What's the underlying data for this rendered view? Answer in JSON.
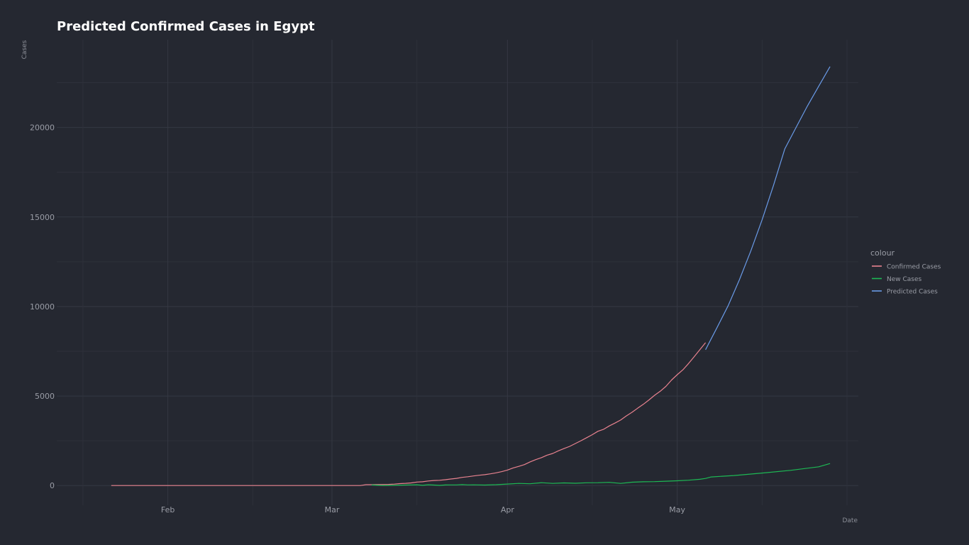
{
  "chart_data": {
    "type": "line",
    "title": "Predicted Confirmed Cases in Egypt",
    "xlabel": "Date",
    "ylabel": "Cases",
    "x_start": "2020-01-22",
    "x_end": "2020-05-26",
    "xlim_days": [
      -8,
      132
    ],
    "ylim": [
      -1100,
      24900
    ],
    "y_ticks": [
      0,
      5000,
      10000,
      15000,
      20000
    ],
    "y_tick_labels": [
      "0",
      "5000",
      "10000",
      "15000",
      "20000"
    ],
    "x_ticks_days": [
      10,
      39,
      70,
      100
    ],
    "x_tick_labels": [
      "Feb",
      "Mar",
      "Apr",
      "May"
    ],
    "x_minor_days": [
      -5,
      25,
      54,
      85,
      115,
      130
    ],
    "legend_title": "colour",
    "legend_position": "right",
    "grid": true,
    "series": [
      {
        "name": "Confirmed Cases",
        "color": "#e8828f",
        "x_days": [
          0,
          5,
          10,
          15,
          20,
          25,
          30,
          35,
          40,
          41,
          42,
          44,
          45,
          46,
          47,
          48,
          49,
          50,
          51,
          52,
          53,
          54,
          55,
          56,
          57,
          58,
          59,
          60,
          61,
          62,
          63,
          64,
          65,
          66,
          67,
          68,
          69,
          70,
          71,
          72,
          73,
          74,
          75,
          76,
          77,
          78,
          79,
          80,
          81,
          82,
          83,
          84,
          85,
          86,
          87,
          88,
          89,
          90,
          91,
          92,
          93,
          94,
          95,
          96,
          97,
          98,
          99,
          100,
          101,
          102,
          103,
          104,
          105
        ],
        "values": [
          0,
          0,
          0,
          0,
          0,
          0,
          0,
          0,
          0,
          0,
          1,
          2,
          49,
          49,
          55,
          60,
          67,
          80,
          109,
          126,
          150,
          196,
          210,
          256,
          285,
          294,
          327,
          366,
          402,
          456,
          495,
          536,
          576,
          609,
          656,
          710,
          779,
          865,
          985,
          1070,
          1173,
          1322,
          1450,
          1560,
          1699,
          1794,
          1939,
          2065,
          2190,
          2350,
          2505,
          2673,
          2844,
          3032,
          3144,
          3333,
          3490,
          3659,
          3891,
          4092,
          4319,
          4534,
          4782,
          5042,
          5268,
          5537,
          5895,
          6193,
          6465,
          6813,
          7201,
          7588,
          7981
        ],
        "labels_shown": false
      },
      {
        "name": "New Cases",
        "color": "#1db954",
        "x_days": [
          46,
          48,
          50,
          52,
          54,
          55,
          56,
          57,
          58,
          59,
          60,
          61,
          62,
          63,
          64,
          66,
          68,
          70,
          72,
          74,
          76,
          78,
          80,
          82,
          84,
          86,
          88,
          90,
          92,
          94,
          96,
          98,
          100,
          102,
          104,
          105,
          106,
          110,
          115,
          120,
          125,
          127
        ],
        "values": [
          33,
          6,
          12,
          29,
          46,
          14,
          46,
          29,
          9,
          33,
          39,
          36,
          54,
          39,
          40,
          30,
          49,
          86,
          120,
          100,
          160,
          120,
          150,
          130,
          155,
          160,
          180,
          120,
          190,
          210,
          220,
          245,
          269,
          300,
          350,
          400,
          480,
          560,
          700,
          850,
          1050,
          1230
        ],
        "labels_shown": false
      },
      {
        "name": "Predicted Cases",
        "color": "#6a9be8",
        "x_days": [
          105,
          107,
          109,
          111,
          113,
          115,
          117,
          119,
          121,
          123,
          125,
          127
        ],
        "values": [
          7588,
          8800,
          10050,
          11500,
          13100,
          14850,
          16750,
          18800,
          20000,
          21200,
          22300,
          23400
        ],
        "labels_shown": false
      }
    ]
  }
}
